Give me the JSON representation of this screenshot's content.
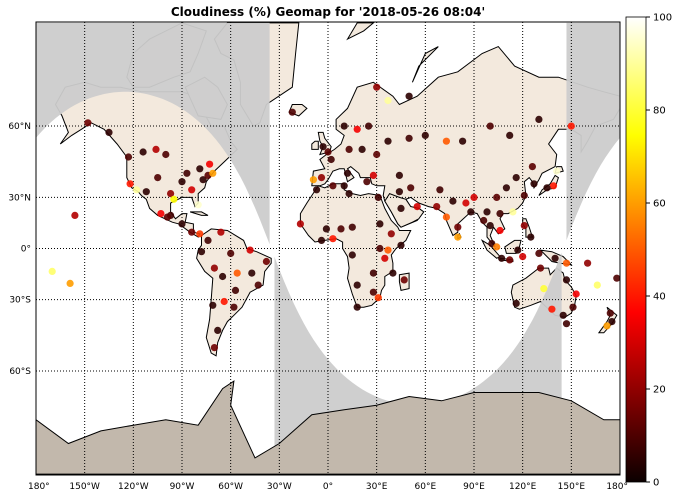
{
  "chart_data": {
    "type": "scatter",
    "title": "Cloudiness (%) Geomap for '2018-05-26 08:04'",
    "projection": "mercator",
    "xlim": [
      -180,
      180
    ],
    "ylim": [
      -80,
      80
    ],
    "x_ticks": [
      {
        "value": -180,
        "label": "180°"
      },
      {
        "value": -150,
        "label": "150°W"
      },
      {
        "value": -120,
        "label": "120°W"
      },
      {
        "value": -90,
        "label": "90°W"
      },
      {
        "value": -60,
        "label": "60°W"
      },
      {
        "value": -30,
        "label": "30°W"
      },
      {
        "value": 0,
        "label": "0°"
      },
      {
        "value": 30,
        "label": "30°E"
      },
      {
        "value": 60,
        "label": "60°E"
      },
      {
        "value": 90,
        "label": "90°E"
      },
      {
        "value": 120,
        "label": "120°E"
      },
      {
        "value": 150,
        "label": "150°E"
      },
      {
        "value": 180,
        "label": "180°"
      }
    ],
    "y_ticks": [
      {
        "value": 60,
        "label": "60°N"
      },
      {
        "value": 30,
        "label": "30°N"
      },
      {
        "value": 0,
        "label": "0°"
      },
      {
        "value": -30,
        "label": "30°S"
      },
      {
        "value": -60,
        "label": "60°S"
      }
    ],
    "grid": true,
    "colorbar": {
      "min": 0,
      "max": 100,
      "ticks": [
        "0",
        "20",
        "40",
        "60",
        "80",
        "100"
      ],
      "colormap": "hot",
      "placement": "right"
    },
    "colors": {
      "land": "#f3e9dd",
      "night_shade": "#cccccc",
      "antarctica": "#c2b8ac",
      "ocean": "#ffffff",
      "coast": "#000000"
    },
    "points": [
      {
        "lon": -148,
        "lat": 61,
        "value": 15
      },
      {
        "lon": -135,
        "lat": 58,
        "value": 5
      },
      {
        "lon": -123,
        "lat": 49,
        "value": 10
      },
      {
        "lon": -122,
        "lat": 37,
        "value": 40
      },
      {
        "lon": -118,
        "lat": 34,
        "value": 90
      },
      {
        "lon": -112,
        "lat": 33,
        "value": 5
      },
      {
        "lon": -105,
        "lat": 40,
        "value": 10
      },
      {
        "lon": -97,
        "lat": 32,
        "value": 20
      },
      {
        "lon": -95,
        "lat": 29,
        "value": 75
      },
      {
        "lon": -90,
        "lat": 38,
        "value": 5
      },
      {
        "lon": -87,
        "lat": 42,
        "value": 8
      },
      {
        "lon": -84,
        "lat": 34,
        "value": 30
      },
      {
        "lon": -80,
        "lat": 26,
        "value": 95
      },
      {
        "lon": -77,
        "lat": 39,
        "value": 5
      },
      {
        "lon": -74,
        "lat": 41,
        "value": 12
      },
      {
        "lon": -71,
        "lat": 42,
        "value": 60
      },
      {
        "lon": -79,
        "lat": 44,
        "value": 5
      },
      {
        "lon": -73,
        "lat": 46,
        "value": 35
      },
      {
        "lon": -100,
        "lat": 50,
        "value": 10
      },
      {
        "lon": -114,
        "lat": 51,
        "value": 5
      },
      {
        "lon": -106,
        "lat": 52,
        "value": 25
      },
      {
        "lon": -97,
        "lat": 20,
        "value": 8
      },
      {
        "lon": -99,
        "lat": 19,
        "value": 12
      },
      {
        "lon": -103,
        "lat": 21,
        "value": 35
      },
      {
        "lon": -90,
        "lat": 15,
        "value": 5
      },
      {
        "lon": -84,
        "lat": 10,
        "value": 15
      },
      {
        "lon": -79,
        "lat": 9,
        "value": 45
      },
      {
        "lon": -74,
        "lat": 5,
        "value": 8
      },
      {
        "lon": -66,
        "lat": 10,
        "value": 25
      },
      {
        "lon": -78,
        "lat": -2,
        "value": 5
      },
      {
        "lon": -60,
        "lat": -3,
        "value": 10
      },
      {
        "lon": -48,
        "lat": -1,
        "value": 30
      },
      {
        "lon": -38,
        "lat": -8,
        "value": 15
      },
      {
        "lon": -47,
        "lat": -15,
        "value": 5
      },
      {
        "lon": -43,
        "lat": -22,
        "value": 10
      },
      {
        "lon": -56,
        "lat": -15,
        "value": 50
      },
      {
        "lon": -65,
        "lat": -17,
        "value": 5
      },
      {
        "lon": -70,
        "lat": -12,
        "value": 20
      },
      {
        "lon": -71,
        "lat": -33,
        "value": 5
      },
      {
        "lon": -58,
        "lat": -34,
        "value": 10
      },
      {
        "lon": -64,
        "lat": -31,
        "value": 40
      },
      {
        "lon": -68,
        "lat": -45,
        "value": 5
      },
      {
        "lon": -70,
        "lat": -52,
        "value": 15
      },
      {
        "lon": -57,
        "lat": -25,
        "value": 8
      },
      {
        "lon": -156,
        "lat": 20,
        "value": 25
      },
      {
        "lon": -170,
        "lat": -14,
        "value": 85
      },
      {
        "lon": -159,
        "lat": -21,
        "value": 60
      },
      {
        "lon": -22,
        "lat": 64,
        "value": 10
      },
      {
        "lon": -3,
        "lat": 53,
        "value": 5
      },
      {
        "lon": 0,
        "lat": 51,
        "value": 12
      },
      {
        "lon": 2,
        "lat": 48,
        "value": 8
      },
      {
        "lon": -4,
        "lat": 40,
        "value": 20
      },
      {
        "lon": -9,
        "lat": 39,
        "value": 60
      },
      {
        "lon": 12,
        "lat": 42,
        "value": 5
      },
      {
        "lon": 13,
        "lat": 52,
        "value": 10
      },
      {
        "lon": 10,
        "lat": 60,
        "value": 5
      },
      {
        "lon": 18,
        "lat": 59,
        "value": 35
      },
      {
        "lon": 25,
        "lat": 60,
        "value": 8
      },
      {
        "lon": 21,
        "lat": 52,
        "value": 5
      },
      {
        "lon": 30,
        "lat": 50,
        "value": 12
      },
      {
        "lon": 37,
        "lat": 55,
        "value": 5
      },
      {
        "lon": 28,
        "lat": 41,
        "value": 30
      },
      {
        "lon": 24,
        "lat": 38,
        "value": 10
      },
      {
        "lon": 44,
        "lat": 41,
        "value": 5
      },
      {
        "lon": 50,
        "lat": 56,
        "value": 8
      },
      {
        "lon": 60,
        "lat": 57,
        "value": 5
      },
      {
        "lon": 73,
        "lat": 55,
        "value": 50
      },
      {
        "lon": 83,
        "lat": 55,
        "value": 5
      },
      {
        "lon": 37,
        "lat": 67,
        "value": 90
      },
      {
        "lon": 30,
        "lat": 70,
        "value": 20
      },
      {
        "lon": 50,
        "lat": 68,
        "value": 5
      },
      {
        "lon": 100,
        "lat": 60,
        "value": 10
      },
      {
        "lon": 130,
        "lat": 62,
        "value": 5
      },
      {
        "lon": 150,
        "lat": 60,
        "value": 40
      },
      {
        "lon": 112,
        "lat": 57,
        "value": 5
      },
      {
        "lon": -7,
        "lat": 34,
        "value": 5
      },
      {
        "lon": 3,
        "lat": 36,
        "value": 12
      },
      {
        "lon": 10,
        "lat": 36,
        "value": 5
      },
      {
        "lon": 31,
        "lat": 30,
        "value": 8
      },
      {
        "lon": 13,
        "lat": 32,
        "value": 5
      },
      {
        "lon": -17,
        "lat": 15,
        "value": 25
      },
      {
        "lon": -1,
        "lat": 12,
        "value": 5
      },
      {
        "lon": 8,
        "lat": 12,
        "value": 10
      },
      {
        "lon": 3,
        "lat": 6,
        "value": 40
      },
      {
        "lon": -4,
        "lat": 5,
        "value": 5
      },
      {
        "lon": 15,
        "lat": 13,
        "value": 8
      },
      {
        "lon": 32,
        "lat": 15,
        "value": 5
      },
      {
        "lon": 39,
        "lat": 9,
        "value": 20
      },
      {
        "lon": 45,
        "lat": 2,
        "value": 5
      },
      {
        "lon": 37,
        "lat": -1,
        "value": 50
      },
      {
        "lon": 32,
        "lat": 0,
        "value": 10
      },
      {
        "lon": 15,
        "lat": -4,
        "value": 5
      },
      {
        "lon": 28,
        "lat": -15,
        "value": 8
      },
      {
        "lon": 35,
        "lat": -6,
        "value": 30
      },
      {
        "lon": 40,
        "lat": -15,
        "value": 5
      },
      {
        "lon": 47,
        "lat": -19,
        "value": 15
      },
      {
        "lon": 18,
        "lat": -34,
        "value": 5
      },
      {
        "lon": 28,
        "lat": -26,
        "value": 10
      },
      {
        "lon": 31,
        "lat": -29,
        "value": 45
      },
      {
        "lon": 18,
        "lat": -22,
        "value": 5
      },
      {
        "lon": 45,
        "lat": 24,
        "value": 5
      },
      {
        "lon": 55,
        "lat": 25,
        "value": 30
      },
      {
        "lon": 51,
        "lat": 35,
        "value": 10
      },
      {
        "lon": 44,
        "lat": 33,
        "value": 5
      },
      {
        "lon": 69,
        "lat": 34,
        "value": 8
      },
      {
        "lon": 67,
        "lat": 25,
        "value": 20
      },
      {
        "lon": 77,
        "lat": 28,
        "value": 5
      },
      {
        "lon": 73,
        "lat": 19,
        "value": 50
      },
      {
        "lon": 80,
        "lat": 13,
        "value": 15
      },
      {
        "lon": 88,
        "lat": 22,
        "value": 5
      },
      {
        "lon": 85,
        "lat": 27,
        "value": 30
      },
      {
        "lon": 80,
        "lat": 7,
        "value": 60
      },
      {
        "lon": 96,
        "lat": 17,
        "value": 10
      },
      {
        "lon": 100,
        "lat": 14,
        "value": 5
      },
      {
        "lon": 106,
        "lat": 11,
        "value": 35
      },
      {
        "lon": 106,
        "lat": 21,
        "value": 8
      },
      {
        "lon": 114,
        "lat": 22,
        "value": 90
      },
      {
        "lon": 121,
        "lat": 31,
        "value": 10
      },
      {
        "lon": 116,
        "lat": 40,
        "value": 5
      },
      {
        "lon": 104,
        "lat": 30,
        "value": 12
      },
      {
        "lon": 127,
        "lat": 37,
        "value": 5
      },
      {
        "lon": 139,
        "lat": 36,
        "value": 40
      },
      {
        "lon": 135,
        "lat": 35,
        "value": 5
      },
      {
        "lon": 141,
        "lat": 43,
        "value": 95
      },
      {
        "lon": 121,
        "lat": 14,
        "value": 20
      },
      {
        "lon": 125,
        "lat": 7,
        "value": 5
      },
      {
        "lon": 101,
        "lat": 3,
        "value": 8
      },
      {
        "lon": 104,
        "lat": 1,
        "value": 55
      },
      {
        "lon": 107,
        "lat": -6,
        "value": 5
      },
      {
        "lon": 112,
        "lat": -7,
        "value": 15
      },
      {
        "lon": 117,
        "lat": -1,
        "value": 5
      },
      {
        "lon": 120,
        "lat": -5,
        "value": 30
      },
      {
        "lon": 130,
        "lat": -3,
        "value": 10
      },
      {
        "lon": 140,
        "lat": -6,
        "value": 5
      },
      {
        "lon": 147,
        "lat": -9,
        "value": 50
      },
      {
        "lon": 160,
        "lat": -9,
        "value": 20
      },
      {
        "lon": 166,
        "lat": -22,
        "value": 85
      },
      {
        "lon": 178,
        "lat": -18,
        "value": 10
      },
      {
        "lon": 116,
        "lat": -32,
        "value": 5
      },
      {
        "lon": 131,
        "lat": -12,
        "value": 15
      },
      {
        "lon": 133,
        "lat": -24,
        "value": 80
      },
      {
        "lon": 138,
        "lat": -35,
        "value": 40
      },
      {
        "lon": 145,
        "lat": -38,
        "value": 5
      },
      {
        "lon": 151,
        "lat": -34,
        "value": 10
      },
      {
        "lon": 153,
        "lat": -27,
        "value": 35
      },
      {
        "lon": 147,
        "lat": -19,
        "value": 5
      },
      {
        "lon": 147,
        "lat": -42,
        "value": 8
      },
      {
        "lon": 175,
        "lat": -41,
        "value": 5
      },
      {
        "lon": 172,
        "lat": -43,
        "value": 60
      },
      {
        "lon": 174,
        "lat": -37,
        "value": 10
      },
      {
        "lon": 98,
        "lat": 22,
        "value": 5
      },
      {
        "lon": 90,
        "lat": 30,
        "value": 30
      },
      {
        "lon": 110,
        "lat": 35,
        "value": 5
      },
      {
        "lon": 126,
        "lat": 45,
        "value": 12
      }
    ]
  }
}
